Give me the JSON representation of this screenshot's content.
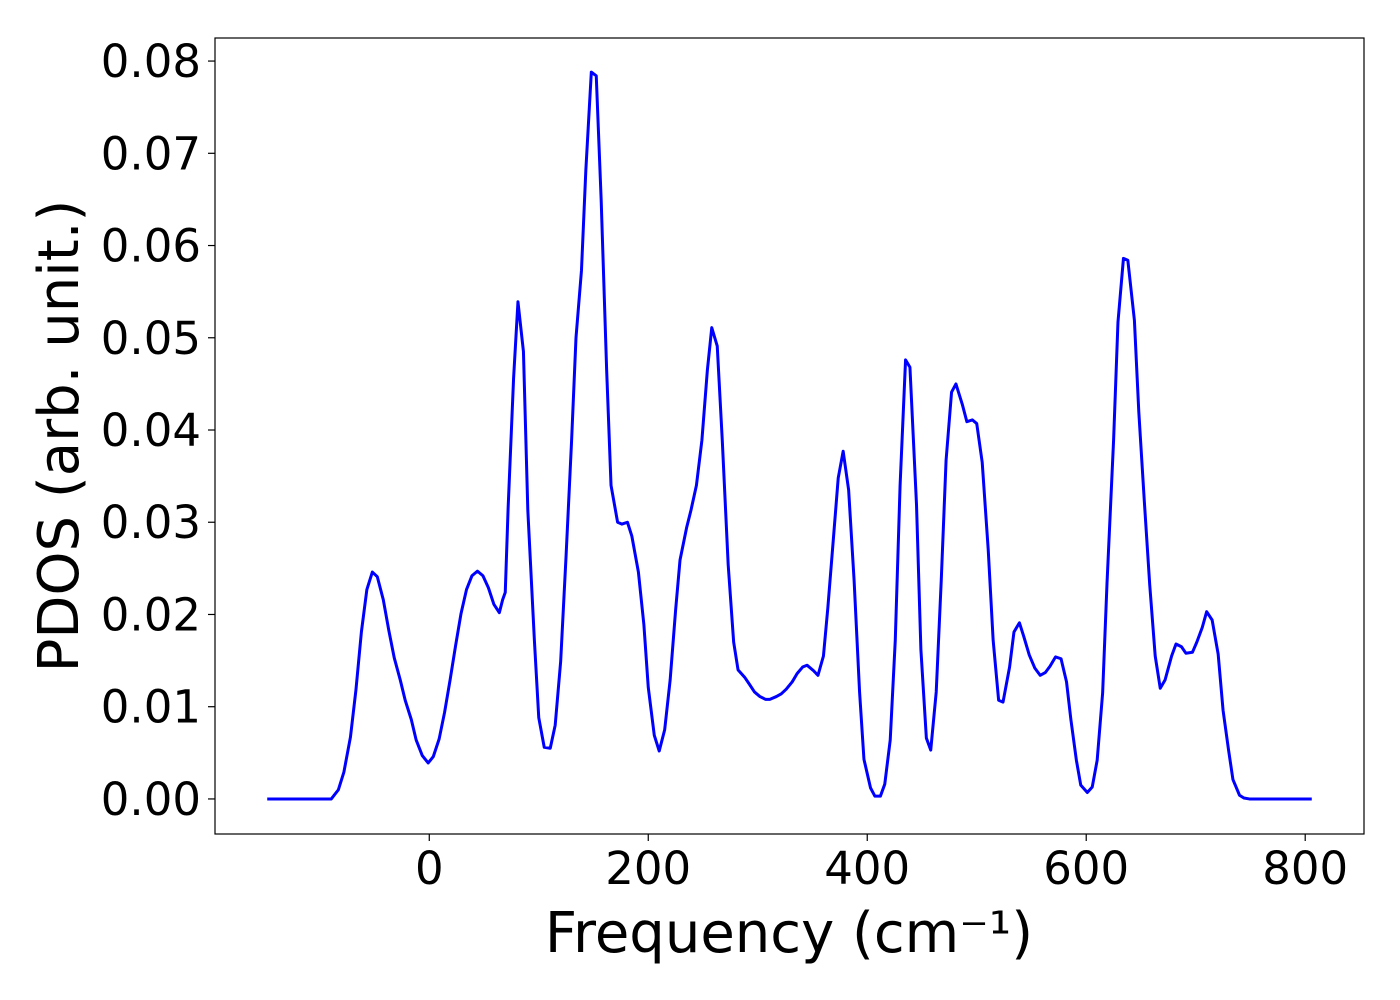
{
  "chart_data": {
    "type": "line",
    "xlabel": "Frequency (cm⁻¹)",
    "ylabel": "PDOS (arb. unit.)",
    "xlim": [
      -195.7,
      853.7
    ],
    "ylim": [
      -0.0038,
      0.0825
    ],
    "xticks": [
      0,
      200,
      400,
      600,
      800
    ],
    "yticks": [
      {
        "value": 0,
        "label": "0.00"
      },
      0.01,
      0.02,
      0.03,
      0.04,
      0.05,
      0.06,
      0.07,
      0.08
    ],
    "x": [
      -148,
      -89.5,
      -83,
      -78,
      -72,
      -67,
      -62,
      -57,
      -52,
      -47.5,
      -42,
      -37,
      -32,
      -26.5,
      -22,
      -16.4,
      -12,
      -6.4,
      -1,
      3.7,
      9,
      14,
      19,
      24,
      29,
      34,
      39,
      44,
      49,
      54,
      59,
      64,
      67,
      69.4,
      72,
      77,
      81,
      86,
      90,
      96,
      100,
      105,
      110.5,
      115,
      120,
      125,
      130,
      134,
      139,
      143,
      148,
      152.5,
      157,
      162,
      166,
      172,
      176,
      181,
      185,
      191,
      196,
      200,
      205.5,
      210,
      215,
      220,
      225,
      229,
      235,
      239,
      244,
      249,
      254,
      258,
      263,
      267.6,
      273,
      278,
      282,
      288,
      292,
      297,
      302,
      307,
      311,
      317,
      321.5,
      326,
      331.5,
      336,
      341,
      345,
      351,
      355,
      360,
      364,
      369,
      373.5,
      378,
      383,
      388,
      393,
      397,
      403,
      407,
      412,
      416,
      421,
      425.6,
      430,
      435,
      439,
      445,
      449,
      454,
      458,
      463,
      467.6,
      472,
      477,
      481,
      487,
      491,
      496,
      500,
      505,
      510.5,
      515,
      520,
      524,
      530,
      534,
      539,
      543,
      548,
      553,
      558,
      562.6,
      567,
      572,
      577,
      582,
      586,
      591,
      595,
      601,
      605.5,
      610,
      615,
      619,
      625,
      629,
      634,
      638,
      644,
      648,
      653,
      658,
      663,
      667.6,
      672,
      678,
      682,
      687,
      691,
      697,
      701,
      706,
      710,
      715,
      720.5,
      725,
      730,
      734,
      740,
      744,
      749,
      806
    ],
    "series": [
      {
        "color": "#0000ff",
        "values": [
          0,
          0,
          0.001,
          0.0029,
          0.0067,
          0.0118,
          0.0181,
          0.0227,
          0.0246,
          0.0241,
          0.0216,
          0.0183,
          0.0153,
          0.0129,
          0.0107,
          0.0086,
          0.0064,
          0.0047,
          0.0039,
          0.0046,
          0.0065,
          0.0094,
          0.0129,
          0.0166,
          0.0201,
          0.0227,
          0.0242,
          0.0247,
          0.0242,
          0.0229,
          0.0211,
          0.0202,
          0.0216,
          0.0224,
          0.0315,
          0.0456,
          0.0539,
          0.0485,
          0.0313,
          0.0172,
          0.0088,
          0.0056,
          0.0055,
          0.008,
          0.0149,
          0.0265,
          0.0389,
          0.05,
          0.0573,
          0.0682,
          0.0788,
          0.0784,
          0.0649,
          0.0465,
          0.034,
          0.03,
          0.0298,
          0.03,
          0.0285,
          0.0246,
          0.0189,
          0.0121,
          0.0069,
          0.0052,
          0.0075,
          0.0129,
          0.0205,
          0.0259,
          0.0294,
          0.0313,
          0.034,
          0.0389,
          0.0465,
          0.0511,
          0.0491,
          0.0389,
          0.0254,
          0.017,
          0.014,
          0.0132,
          0.0125,
          0.0116,
          0.0111,
          0.0108,
          0.0108,
          0.0111,
          0.0114,
          0.0119,
          0.0127,
          0.0136,
          0.0143,
          0.0145,
          0.0139,
          0.0134,
          0.0155,
          0.0207,
          0.0281,
          0.0348,
          0.0377,
          0.0335,
          0.0237,
          0.0116,
          0.0043,
          0.0012,
          0.0003,
          0.0003,
          0.0016,
          0.0064,
          0.0172,
          0.034,
          0.0476,
          0.0468,
          0.0319,
          0.0162,
          0.0066,
          0.0053,
          0.0116,
          0.0237,
          0.0367,
          0.0441,
          0.045,
          0.0427,
          0.0409,
          0.0411,
          0.0407,
          0.0365,
          0.027,
          0.0172,
          0.0107,
          0.0105,
          0.0143,
          0.0181,
          0.0191,
          0.0176,
          0.0156,
          0.0142,
          0.0134,
          0.0137,
          0.0144,
          0.0154,
          0.0152,
          0.0127,
          0.0086,
          0.0042,
          0.0015,
          0.0007,
          0.0013,
          0.0042,
          0.0115,
          0.0234,
          0.0389,
          0.0517,
          0.0586,
          0.0584,
          0.0519,
          0.042,
          0.0324,
          0.0232,
          0.0155,
          0.012,
          0.0129,
          0.0155,
          0.0168,
          0.0165,
          0.0158,
          0.0159,
          0.017,
          0.0186,
          0.0203,
          0.0194,
          0.0157,
          0.0096,
          0.0053,
          0.0021,
          0.0004,
          0.0001,
          0,
          0
        ]
      }
    ]
  }
}
